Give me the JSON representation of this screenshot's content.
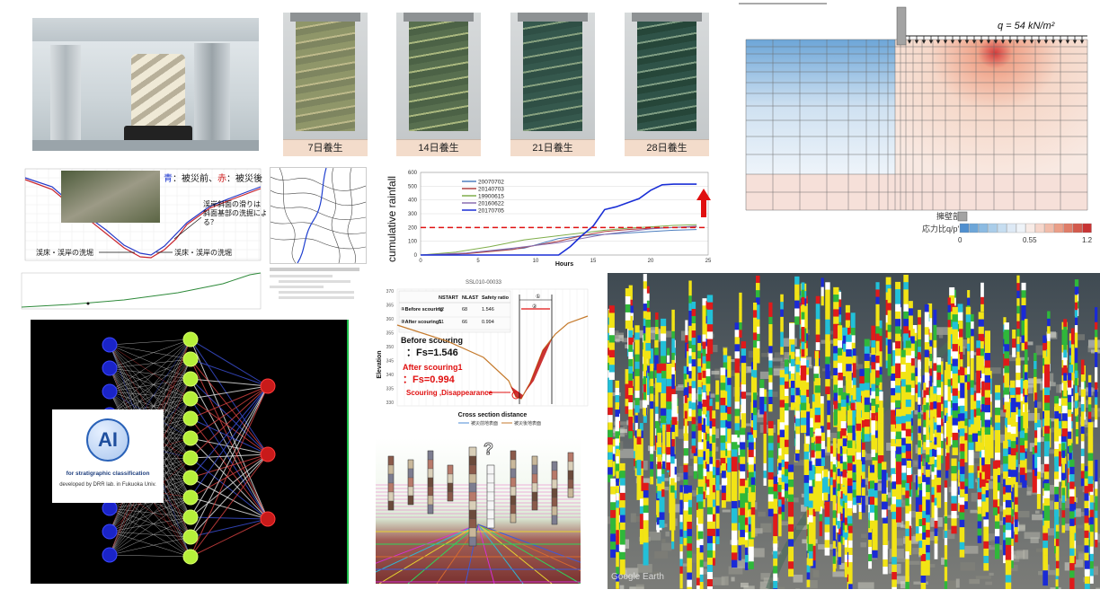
{
  "curing": {
    "labels": [
      "7日養生",
      "14日養生",
      "21日養生",
      "28日養生"
    ]
  },
  "fem": {
    "load_label": "q = 54 kN/m²",
    "legend_wall": "擁壁部",
    "legend_stress": "応力比q/p'",
    "scale_min": "0",
    "scale_mid": "0.55",
    "scale_max": "1.2"
  },
  "profile": {
    "legend_before_prefix": "青",
    "legend_before_text": "：被災前、",
    "legend_after_prefix": "赤",
    "legend_after_text": "：被災後",
    "note_line1": "渓岸斜面の滑りは",
    "note_line2": "斜面基部の洗掘によ",
    "note_line3": "る？",
    "left_callout": "渓床・渓岸の洗堀",
    "right_callout": "渓床・渓岸の洗堀"
  },
  "rainfall_chart": {
    "chart_data": {
      "type": "line",
      "ylabel": "cumulative rainfall",
      "xlabel": "Hours",
      "xlim": [
        0,
        25
      ],
      "ylim": [
        0,
        600
      ],
      "xticks": [
        0,
        5,
        10,
        15,
        20,
        25
      ],
      "yticks": [
        0,
        100,
        200,
        300,
        400,
        500,
        600
      ],
      "threshold": 200,
      "legend_position": "top-left",
      "series": [
        {
          "name": "20070702",
          "color": "#4d7fbf",
          "x": [
            0,
            3,
            6,
            9,
            12,
            14,
            16,
            18,
            20,
            22,
            24
          ],
          "y": [
            0,
            5,
            30,
            50,
            120,
            140,
            150,
            160,
            170,
            180,
            185
          ]
        },
        {
          "name": "20140703",
          "color": "#b04040",
          "x": [
            0,
            4,
            8,
            12,
            14,
            16,
            18,
            20,
            22,
            24
          ],
          "y": [
            0,
            10,
            40,
            100,
            140,
            170,
            185,
            195,
            200,
            205
          ]
        },
        {
          "name": "19900615",
          "color": "#7fae4a",
          "x": [
            0,
            3,
            6,
            9,
            12,
            14,
            16,
            18,
            20,
            22,
            24
          ],
          "y": [
            0,
            20,
            60,
            110,
            140,
            160,
            180,
            195,
            205,
            215,
            220
          ]
        },
        {
          "name": "20160622",
          "color": "#8a6fb0",
          "x": [
            0,
            4,
            8,
            12,
            14,
            16,
            18,
            20,
            22,
            24
          ],
          "y": [
            0,
            15,
            50,
            90,
            120,
            150,
            170,
            190,
            200,
            210
          ]
        },
        {
          "name": "20170705",
          "color": "#1a2fd6",
          "x": [
            0,
            12,
            13,
            14,
            15,
            16,
            17,
            18,
            19,
            20,
            21,
            22,
            23,
            24
          ],
          "y": [
            0,
            0,
            60,
            140,
            210,
            330,
            350,
            380,
            410,
            470,
            510,
            515,
            515,
            515
          ]
        }
      ]
    }
  },
  "slope_section": {
    "title": "SSL010-00033",
    "table_headers": [
      "",
      "NSTART",
      "NLAST",
      "Safety ratio"
    ],
    "table_rows": [
      [
        "①Before scouring",
        "52",
        "68",
        "1.546"
      ],
      [
        "②After scouring1",
        "51",
        "66",
        "0.994"
      ]
    ],
    "before_label": "Before scouring",
    "before_fs": "：Fs=1.546",
    "after_label": "After scouring1",
    "after_fs": "：Fs=0.994",
    "scour_label": "Scouring ,Disappearance",
    "xlabel": "Cross section distance",
    "ylabel": "Elevation",
    "legend_before": "被災前地表面",
    "legend_after": "被災後地表面",
    "marker1": "①",
    "marker2": "②",
    "yticks": [
      "370",
      "365",
      "360",
      "355",
      "350",
      "345",
      "340",
      "335",
      "330"
    ]
  },
  "ai_panel": {
    "logo_text": "AI",
    "line1": "for stratigraphic classification",
    "line2": "developed by DRR lab. in Fukuoka Univ."
  },
  "borehole_3d": {
    "question": "?"
  },
  "map_panel": {
    "watermark": "Google Earth"
  }
}
